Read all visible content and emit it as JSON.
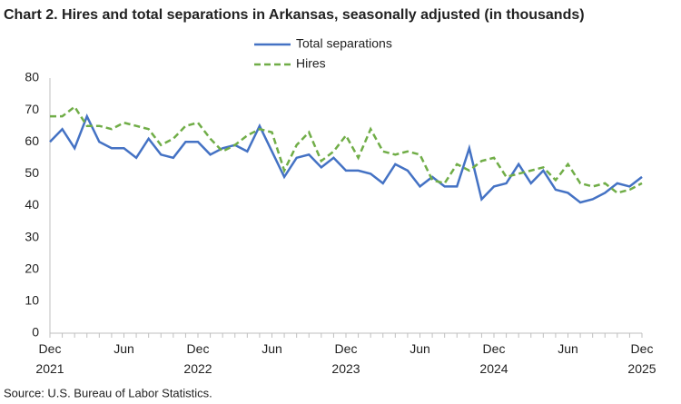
{
  "chart_data": {
    "type": "line",
    "title": "Chart 2. Hires and total separations in Arkansas, seasonally adjusted (in thousands)",
    "source": "Source: U.S. Bureau of Labor Statistics.",
    "categories": [
      "Dec 2021",
      null,
      null,
      null,
      null,
      null,
      "Jun",
      null,
      null,
      null,
      null,
      null,
      "Dec 2022",
      null,
      null,
      null,
      null,
      null,
      "Jun",
      null,
      null,
      null,
      null,
      null,
      "Dec 2023",
      null,
      null,
      null,
      null,
      null,
      "Jun",
      null,
      null,
      null,
      null,
      null,
      "Dec 2024",
      null,
      null,
      null,
      null,
      null,
      "Jun",
      null,
      null,
      null,
      null,
      null,
      "Dec 2025"
    ],
    "series": [
      {
        "name": "Total separations",
        "color": "#4472c4",
        "dash": false,
        "values": [
          60,
          64,
          58,
          68,
          60,
          58,
          58,
          55,
          61,
          56,
          55,
          60,
          60,
          56,
          58,
          59,
          57,
          65,
          57,
          49,
          55,
          56,
          52,
          55,
          51,
          51,
          50,
          47,
          53,
          51,
          46,
          49,
          46,
          46,
          58,
          42,
          46,
          47,
          53,
          47,
          51,
          45,
          44,
          41,
          42,
          44,
          47,
          46,
          49
        ]
      },
      {
        "name": "Hires",
        "color": "#70ad47",
        "dash": true,
        "values": [
          68,
          68,
          71,
          65,
          65,
          64,
          66,
          65,
          64,
          59,
          61,
          65,
          66,
          61,
          57,
          59,
          62,
          64,
          63,
          51,
          59,
          63,
          54,
          57,
          62,
          55,
          64,
          57,
          56,
          57,
          56,
          48,
          47,
          53,
          51,
          54,
          55,
          49,
          50,
          51,
          52,
          48,
          53,
          47,
          46,
          47,
          44,
          45,
          47
        ]
      }
    ],
    "ylim": [
      0,
      80
    ],
    "yticks": [
      0,
      10,
      20,
      30,
      40,
      50,
      60,
      70,
      80
    ]
  }
}
